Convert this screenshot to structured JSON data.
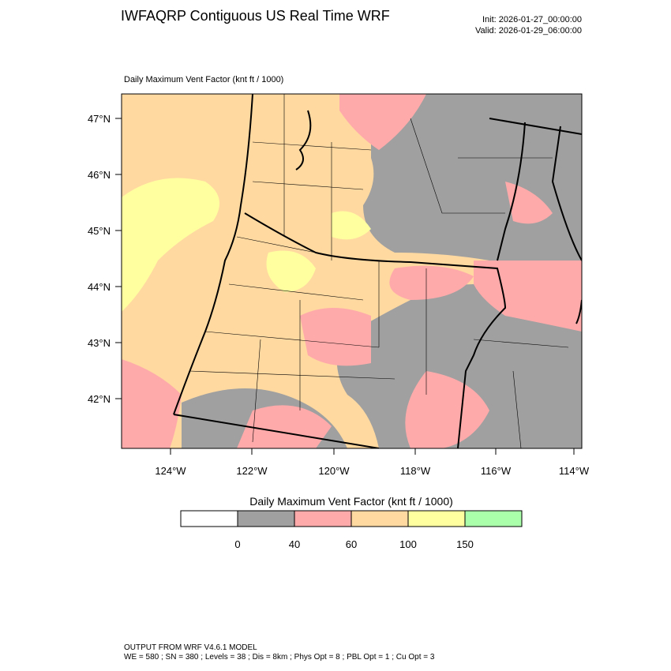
{
  "header": {
    "title": "IWFAQRP Contiguous US Real Time WRF",
    "init": "Init: 2026-01-27_00:00:00",
    "valid": "Valid: 2026-01-29_06:00:00"
  },
  "map": {
    "subtitle": "Daily Maximum Vent Factor   (knt ft / 1000)",
    "lat_labels": [
      "47°N",
      "46°N",
      "45°N",
      "44°N",
      "43°N",
      "42°N"
    ],
    "lon_labels": [
      "124°W",
      "122°W",
      "120°W",
      "118°W",
      "116°W",
      "114°W"
    ]
  },
  "colorbar": {
    "title": "Daily Maximum Vent Factor  (knt ft / 1000)",
    "labels": [
      0,
      40,
      60,
      100,
      150
    ],
    "colors": [
      "#ffffff",
      "#a0a0a0",
      "#ffaaaa",
      "#ffd9a0",
      "#ffffa0",
      "#aaffaa"
    ]
  },
  "footer": [
    "OUTPUT FROM WRF V4.6.1 MODEL",
    "WE = 580 ; SN = 380 ; Levels = 38 ; Dis = 8km ; Phys Opt = 8 ; PBL Opt = 1 ; Cu Opt = 3"
  ]
}
